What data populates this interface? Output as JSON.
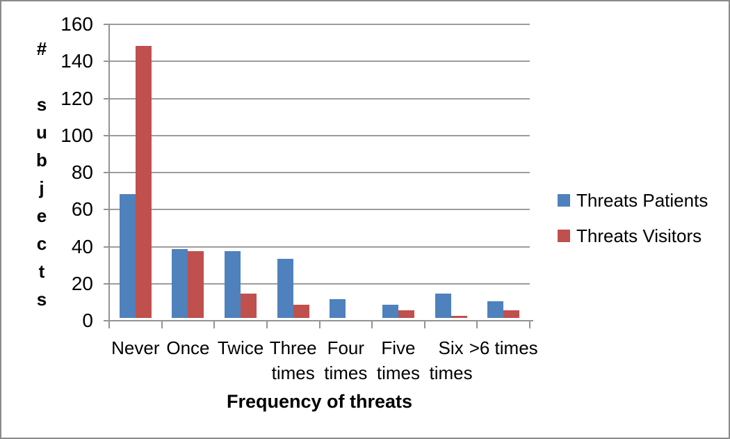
{
  "chart_data": {
    "type": "bar",
    "categories": [
      "Never",
      "Once",
      "Twice",
      "Three times",
      "Four times",
      "Five times",
      "Six times",
      ">6 times"
    ],
    "series": [
      {
        "name": "Threats Patients",
        "color": "#4F81BD",
        "values": [
          67,
          37,
          36,
          32,
          10,
          7,
          13,
          9
        ]
      },
      {
        "name": "Threats Visitors",
        "color": "#C0504D",
        "values": [
          147,
          36,
          13,
          7,
          0,
          4,
          1,
          4
        ]
      }
    ],
    "title": "",
    "xlabel": "Frequency of threats",
    "ylabel": "# subjects",
    "ylim": [
      0,
      160
    ],
    "yticks": [
      0,
      20,
      40,
      60,
      80,
      100,
      120,
      140,
      160
    ],
    "grid": true,
    "legend_position": "right"
  },
  "colors": {
    "grid": "#9c9c9c",
    "axis": "#949494",
    "figure_border": "#8a8a8a",
    "background": "#ffffff",
    "text": "#000000"
  }
}
